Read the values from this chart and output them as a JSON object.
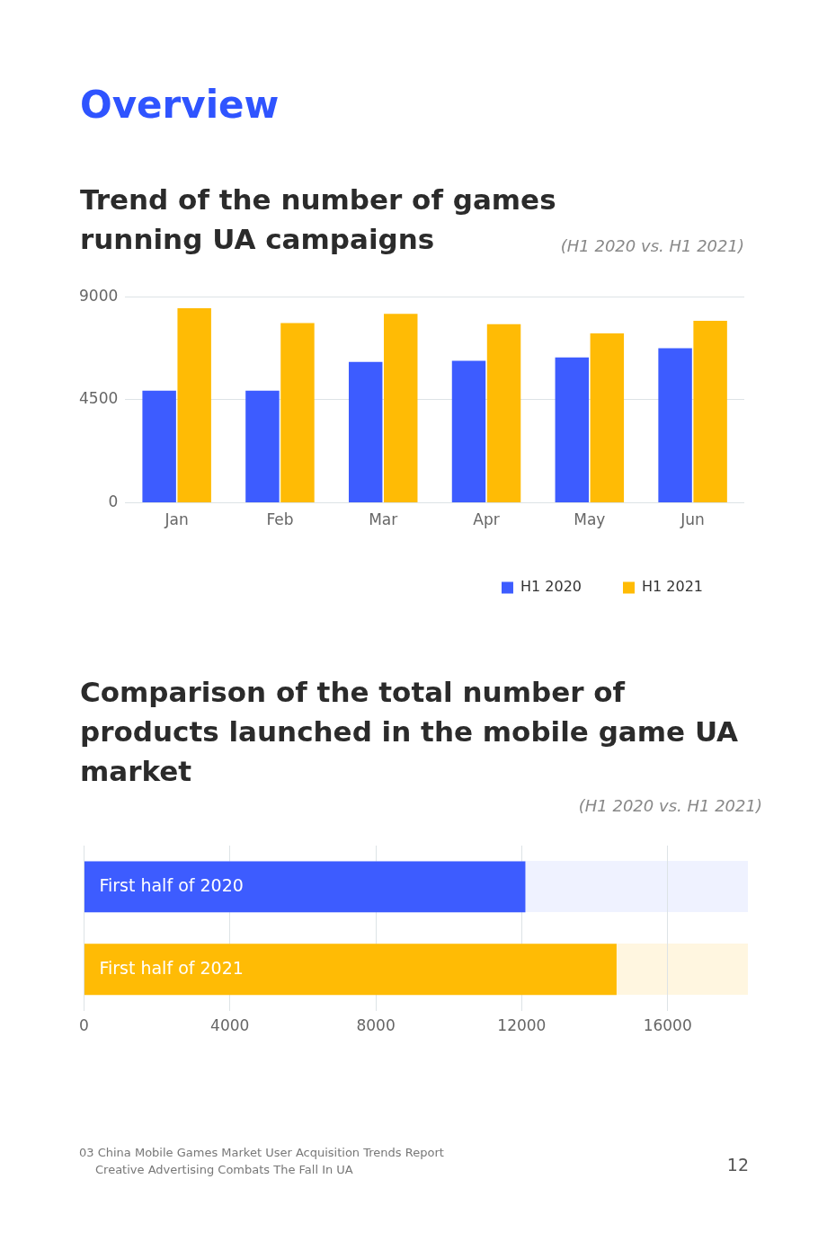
{
  "chart_data": [
    {
      "type": "bar",
      "title": "Trend of the number of games running UA campaigns",
      "subtitle": "(H1 2020 vs. H1 2021)",
      "annotations": [
        "Overview"
      ],
      "categories": [
        "Jan",
        "Feb",
        "Mar",
        "Apr",
        "May",
        "Jun"
      ],
      "series": [
        {
          "name": "H1 2020",
          "color": "#3d5cff",
          "values": [
            4900,
            4900,
            6150,
            6200,
            6350,
            6750
          ]
        },
        {
          "name": "H1 2021",
          "color": "#ffbb05",
          "values": [
            8500,
            7850,
            8250,
            7800,
            7400,
            7950
          ]
        }
      ],
      "ylim": [
        0,
        9000
      ],
      "yticks": [
        0,
        4500,
        9000
      ],
      "grid": "y",
      "legend": "bottom right"
    },
    {
      "type": "bar",
      "orientation": "horizontal",
      "title": "Comparison of the total number of products launched in the mobile game UA market",
      "subtitle": "(H1 2020 vs. H1 2021)",
      "categories": [
        "First half of 2020",
        "First half of 2021"
      ],
      "values": [
        12100,
        14600
      ],
      "colors": [
        "#3d5cff",
        "#ffbb05"
      ],
      "xlim": [
        0,
        18200
      ],
      "xticks": [
        0,
        4000,
        8000,
        12000,
        16000
      ],
      "grid": "x",
      "tick_labels": "x",
      "annotations": [
        "03 China Mobile Games Market User Acquisition Trends Report",
        "Creative Advertising Combats The Fall In UA",
        "12"
      ]
    }
  ]
}
